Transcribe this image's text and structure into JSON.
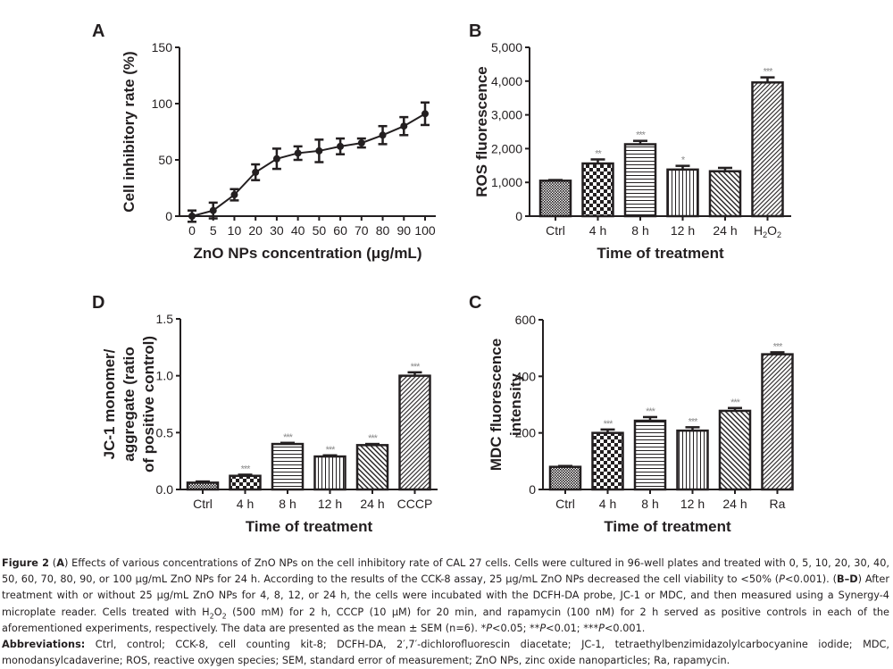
{
  "chart_data": [
    {
      "panel": "A",
      "type": "line",
      "title": "",
      "xlabel": "ZnO NPs concentration (μg/mL)",
      "ylabel": "Cell inhibitory rate (%)",
      "categories": [
        "0",
        "5",
        "10",
        "20",
        "30",
        "40",
        "50",
        "60",
        "70",
        "80",
        "90",
        "100"
      ],
      "values": [
        0,
        5,
        19,
        39,
        51,
        56,
        58,
        62,
        65,
        72,
        80,
        91
      ],
      "errors": [
        5,
        7,
        5,
        7,
        9,
        6,
        10,
        7,
        4,
        8,
        8,
        10
      ],
      "ylim": [
        0,
        150
      ],
      "yticks": [
        0,
        50,
        100,
        150
      ],
      "ytick_labels": [
        "0",
        "50",
        "100",
        "150"
      ],
      "grid": false
    },
    {
      "panel": "B",
      "type": "bar",
      "xlabel": "Time of treatment",
      "ylabel": "ROS fluorescence",
      "categories": [
        "Ctrl",
        "4 h",
        "8 h",
        "12 h",
        "24 h",
        "H2O2"
      ],
      "values": [
        1050,
        1560,
        2130,
        1380,
        1330,
        3960
      ],
      "errors": [
        20,
        120,
        100,
        110,
        100,
        150
      ],
      "significance": [
        "",
        "**",
        "***",
        "*",
        "",
        "***"
      ],
      "patterns": [
        "dots",
        "checker",
        "hlines",
        "vlines",
        "diag-wide",
        "diag"
      ],
      "ylim": [
        0,
        5000
      ],
      "yticks": [
        0,
        1000,
        2000,
        3000,
        4000,
        5000
      ],
      "ytick_labels": [
        "0",
        "1,000",
        "2,000",
        "3,000",
        "4,000",
        "5,000"
      ],
      "grid": false
    },
    {
      "panel": "D",
      "type": "bar",
      "xlabel": "Time of treatment",
      "ylabel_lines": [
        "JC-1 monomer/",
        "aggregate (ratio",
        "of positive control)"
      ],
      "categories": [
        "Ctrl",
        "4 h",
        "8 h",
        "12 h",
        "24 h",
        "CCCP"
      ],
      "values": [
        0.06,
        0.12,
        0.4,
        0.29,
        0.39,
        1.0
      ],
      "errors": [
        0.01,
        0.01,
        0.01,
        0.01,
        0.01,
        0.03
      ],
      "significance": [
        "",
        "***",
        "***",
        "***",
        "***",
        "***"
      ],
      "patterns": [
        "dots",
        "checker",
        "hlines",
        "vlines",
        "diag-wide",
        "diag"
      ],
      "ylim": [
        0,
        1.5
      ],
      "yticks": [
        0,
        0.5,
        1.0,
        1.5
      ],
      "ytick_labels": [
        "0.0",
        "0.5",
        "1.0",
        "1.5"
      ],
      "grid": false
    },
    {
      "panel": "C",
      "type": "bar",
      "xlabel": "Time of treatment",
      "ylabel_lines": [
        "MDC fluorescence",
        "intensity"
      ],
      "categories": [
        "Ctrl",
        "4 h",
        "8 h",
        "12 h",
        "24 h",
        "Ra"
      ],
      "values": [
        80,
        200,
        243,
        208,
        278,
        478
      ],
      "errors": [
        3,
        12,
        13,
        12,
        10,
        7
      ],
      "significance": [
        "",
        "***",
        "***",
        "***",
        "***",
        "***"
      ],
      "patterns": [
        "dots",
        "checker",
        "hlines",
        "vlines",
        "diag-wide",
        "diag"
      ],
      "ylim": [
        0,
        600
      ],
      "yticks": [
        0,
        200,
        400,
        600
      ],
      "ytick_labels": [
        "0",
        "200",
        "400",
        "600"
      ],
      "grid": false
    }
  ],
  "colors": {
    "ink": "#231f20",
    "significance": "#8a8a8a",
    "background": "#ffffff"
  },
  "caption": {
    "figure_label": "Figure 2",
    "part_a_label": "A",
    "part_a_text": " Effects of various concentrations of ZnO NPs on the cell inhibitory rate of CAL 27 cells. Cells were cultured in 96-well plates and treated with 0, 5, 10, 20, 30, 40, 50, 60, 70, 80, 90, or 100 μg/mL ZnO NPs for 24 h. According to the results of the CCK-8 assay, 25 μg/mL ZnO NPs decreased the cell viability to <50% (",
    "p_italic": "P",
    "part_a_end": "<0.001).",
    "part_bd_label": "B–D",
    "part_bd_text1": " After treatment with or without 25 μg/mL ZnO NPs for 4, 8, 12, or 24 h, the cells were incubated with the DCFH-DA probe, JC-1 or MDC, and then measured using a Synergy-4 microplate reader. Cells treated with H",
    "sub2": "2",
    "part_bd_o": "O",
    "part_bd_text2": " (500 mM) for 2 h, CCCP (10 μM) for 20 min, and rapamycin (100 nM) for 2 h served as positive controls in each of the aforementioned experiments, respectively. The data are presented as the mean ± SEM (n=6). *",
    "sig1_end": "<0.05; **",
    "sig2_end": "<0.01; ***",
    "sig3_end": "<0.001.",
    "abbrev_label": "Abbreviations:",
    "abbrev_text": " Ctrl, control; CCK-8, cell counting kit-8; DCFH-DA, 2′,7′-dichlorofluorescin diacetate; JC-1, tetraethylbenzimidazolylcarbocyanine iodide; MDC, monodansylcadaverine; ROS, reactive oxygen species; SEM, standard error of measurement; ZnO NPs, zinc oxide nanoparticles; Ra, rapamycin."
  }
}
